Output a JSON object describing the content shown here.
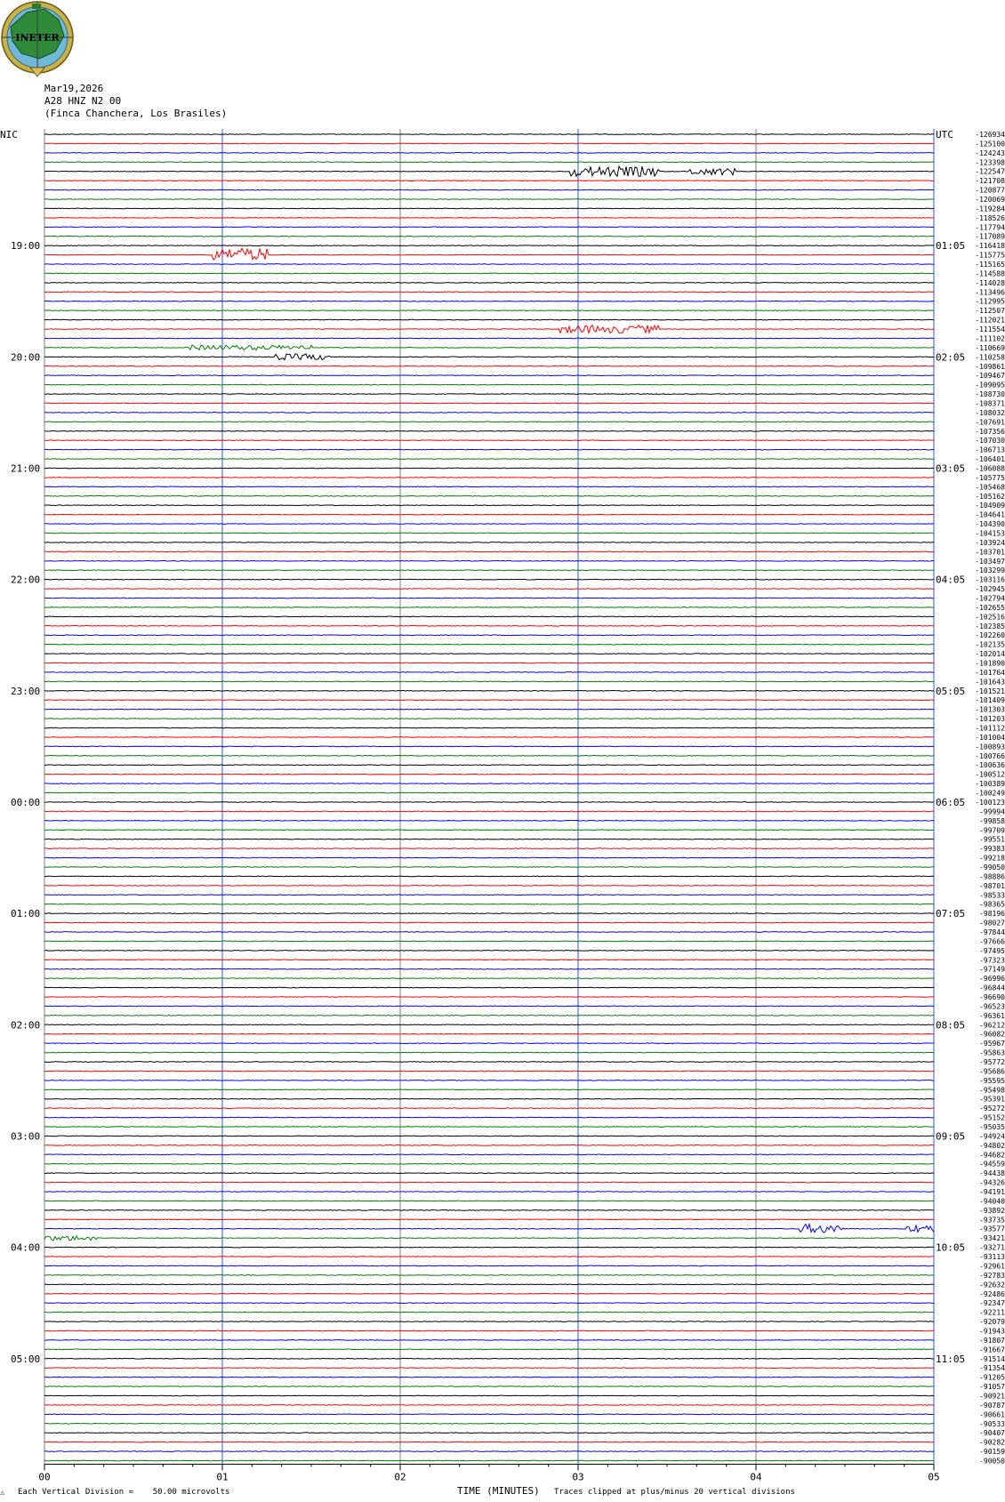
{
  "logo": {
    "text": "INETER"
  },
  "header": {
    "date": "Mar19,2026",
    "station": "A28 HNZ N2 00",
    "location": "(Finca Chanchera, Los Brasiles)"
  },
  "left_label": "NIC",
  "right_label": "UTC",
  "footer": {
    "scale_mark": "⚠",
    "vertical_division": "Each Vertical Division =    50.00 microvolts",
    "xlabel": "TIME (MINUTES)",
    "clip_note": "Traces clipped at plus/minus 20 vertical divisions"
  },
  "colors": {
    "trace_cycle": [
      "#000000",
      "#ff0000",
      "#0000ff",
      "#007f00"
    ],
    "minute_line_color": "#808080"
  },
  "chart_data": {
    "type": "line",
    "title": "",
    "xlabel": "TIME (MINUTES)",
    "xlim": [
      0,
      5
    ],
    "x_ticks": [
      "00",
      "01",
      "02",
      "03",
      "04",
      "05"
    ],
    "trace_count": 144,
    "left_hour_labels": [
      "19:00",
      "20:00",
      "21:00",
      "22:00",
      "23:00",
      "00:00",
      "01:00",
      "02:00",
      "03:00",
      "04:00",
      "05:00"
    ],
    "right_hour_labels": [
      "01:05",
      "02:05",
      "03:05",
      "04:05",
      "05:05",
      "06:05",
      "07:05",
      "08:05",
      "09:05",
      "10:05",
      "11:05"
    ],
    "hour_label_trace_index": [
      12,
      24,
      36,
      48,
      60,
      72,
      84,
      96,
      108,
      120,
      132
    ],
    "trace_offsets": [
      "-126934",
      "-125100",
      "-124243",
      "-123398",
      "-122547",
      "-121708",
      "-120877",
      "-120069",
      "-119284",
      "-118526",
      "-117794",
      "-117089",
      "-116418",
      "-115775",
      "-115165",
      "-114588",
      "-114028",
      "-113496",
      "-112995",
      "-112507",
      "-112021",
      "-111554",
      "-111102",
      "-110669",
      "-110258",
      "-109861",
      "-109467",
      "-109095",
      "-108730",
      "-108371",
      "-108032",
      "-107691",
      "-107356",
      "-107030",
      "-106713",
      "-106401",
      "-106088",
      "-105775",
      "-105468",
      "-105162",
      "-104909",
      "-104641",
      "-104390",
      "-104153",
      "-103924",
      "-103701",
      "-103497",
      "-103299",
      "-103116",
      "-102945",
      "-102794",
      "-102655",
      "-102516",
      "-102385",
      "-102260",
      "-102135",
      "-102014",
      "-101890",
      "-101764",
      "-101643",
      "-101521",
      "-101409",
      "-101303",
      "-101203",
      "-101112",
      "-101004",
      "-100893",
      "-100766",
      "-100636",
      "-100512",
      "-100389",
      "-100249",
      "-100123",
      "-99994",
      "-99858",
      "-99709",
      "-99551",
      "-99383",
      "-99218",
      "-99050",
      "-98886",
      "-98701",
      "-98533",
      "-98365",
      "-98196",
      "-98027",
      "-97844",
      "-97666",
      "-97495",
      "-97323",
      "-97149",
      "-96996",
      "-96844",
      "-96690",
      "-96523",
      "-96361",
      "-96212",
      "-96082",
      "-95967",
      "-95863",
      "-95772",
      "-95686",
      "-95595",
      "-95498",
      "-95391",
      "-95272",
      "-95152",
      "-95035",
      "-94924",
      "-94802",
      "-94682",
      "-94559",
      "-94438",
      "-94326",
      "-94191",
      "-94040",
      "-93892",
      "-93735",
      "-93577",
      "-93421",
      "-93271",
      "-93113",
      "-92961",
      "-92783",
      "-92632",
      "-92486",
      "-92347",
      "-92211",
      "-92079",
      "-91943",
      "-91807",
      "-91667",
      "-91514",
      "-91354",
      "-91205",
      "-91057",
      "-90921",
      "-90787",
      "-90661",
      "-90533",
      "-90407",
      "-90282",
      "-90159",
      "-90050"
    ],
    "events": [
      {
        "trace": 4,
        "x_start": 2.95,
        "x_end": 3.45,
        "amp": 1.0
      },
      {
        "trace": 4,
        "x_start": 3.6,
        "x_end": 3.9,
        "amp": 0.7
      },
      {
        "trace": 13,
        "x_start": 0.95,
        "x_end": 1.25,
        "amp": 1.3
      },
      {
        "trace": 21,
        "x_start": 2.9,
        "x_end": 3.45,
        "amp": 0.8
      },
      {
        "trace": 23,
        "x_start": 0.8,
        "x_end": 1.5,
        "amp": 0.5
      },
      {
        "trace": 24,
        "x_start": 1.3,
        "x_end": 1.6,
        "amp": 0.6
      },
      {
        "trace": 118,
        "x_start": 4.25,
        "x_end": 4.5,
        "amp": 0.9
      },
      {
        "trace": 118,
        "x_start": 4.85,
        "x_end": 5.0,
        "amp": 0.8
      },
      {
        "trace": 119,
        "x_start": 0.0,
        "x_end": 0.3,
        "amp": 0.5
      }
    ]
  }
}
